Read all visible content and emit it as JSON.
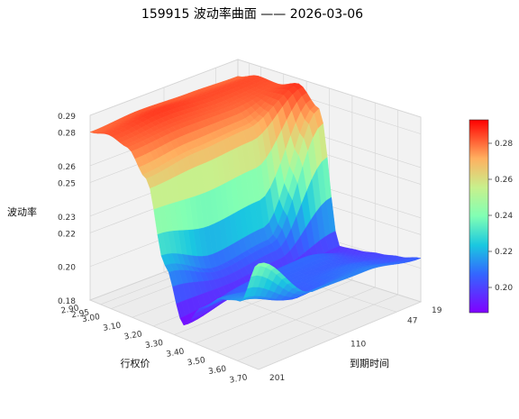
{
  "chart_data": {
    "type": "surface",
    "title": "159915 波动率曲面 —— 2026-03-06",
    "xlabel": "行权价",
    "ylabel": "到期时间",
    "zlabel": "波动率",
    "strikes": [
      2.9,
      2.95,
      3.0,
      3.1,
      3.2,
      3.3,
      3.4,
      3.5,
      3.6,
      3.7
    ],
    "x_ticks": [
      "2.90",
      "2.95",
      "3.00",
      "3.10",
      "3.20",
      "3.30",
      "3.40",
      "3.50",
      "3.60",
      "3.70"
    ],
    "expiry_days": [
      19,
      47,
      110,
      201
    ],
    "y_ticks": [
      "19",
      "47",
      "110",
      "201"
    ],
    "z_ticks": [
      "0.18",
      "0.20",
      "0.22",
      "0.23",
      "0.25",
      "0.26",
      "0.28",
      "0.29"
    ],
    "zlim": [
      0.18,
      0.29
    ],
    "colorbar_ticks": [
      "0.20",
      "0.22",
      "0.24",
      "0.26",
      "0.28"
    ],
    "colorbar_range": [
      0.186,
      0.293
    ],
    "colormap": "rainbow",
    "iv_grid": [
      [
        0.28,
        0.283,
        0.28,
        0.266,
        0.219,
        0.188,
        0.203,
        0.213,
        0.216,
        0.243
      ],
      [
        0.282,
        0.286,
        0.282,
        0.27,
        0.206,
        0.194,
        0.207,
        0.207,
        0.205,
        0.213
      ],
      [
        0.281,
        0.284,
        0.281,
        0.272,
        0.21,
        0.196,
        0.208,
        0.206,
        0.209,
        0.212
      ],
      [
        0.28,
        0.284,
        0.283,
        0.287,
        0.276,
        0.198,
        0.199,
        0.201,
        0.203,
        0.206
      ]
    ]
  }
}
